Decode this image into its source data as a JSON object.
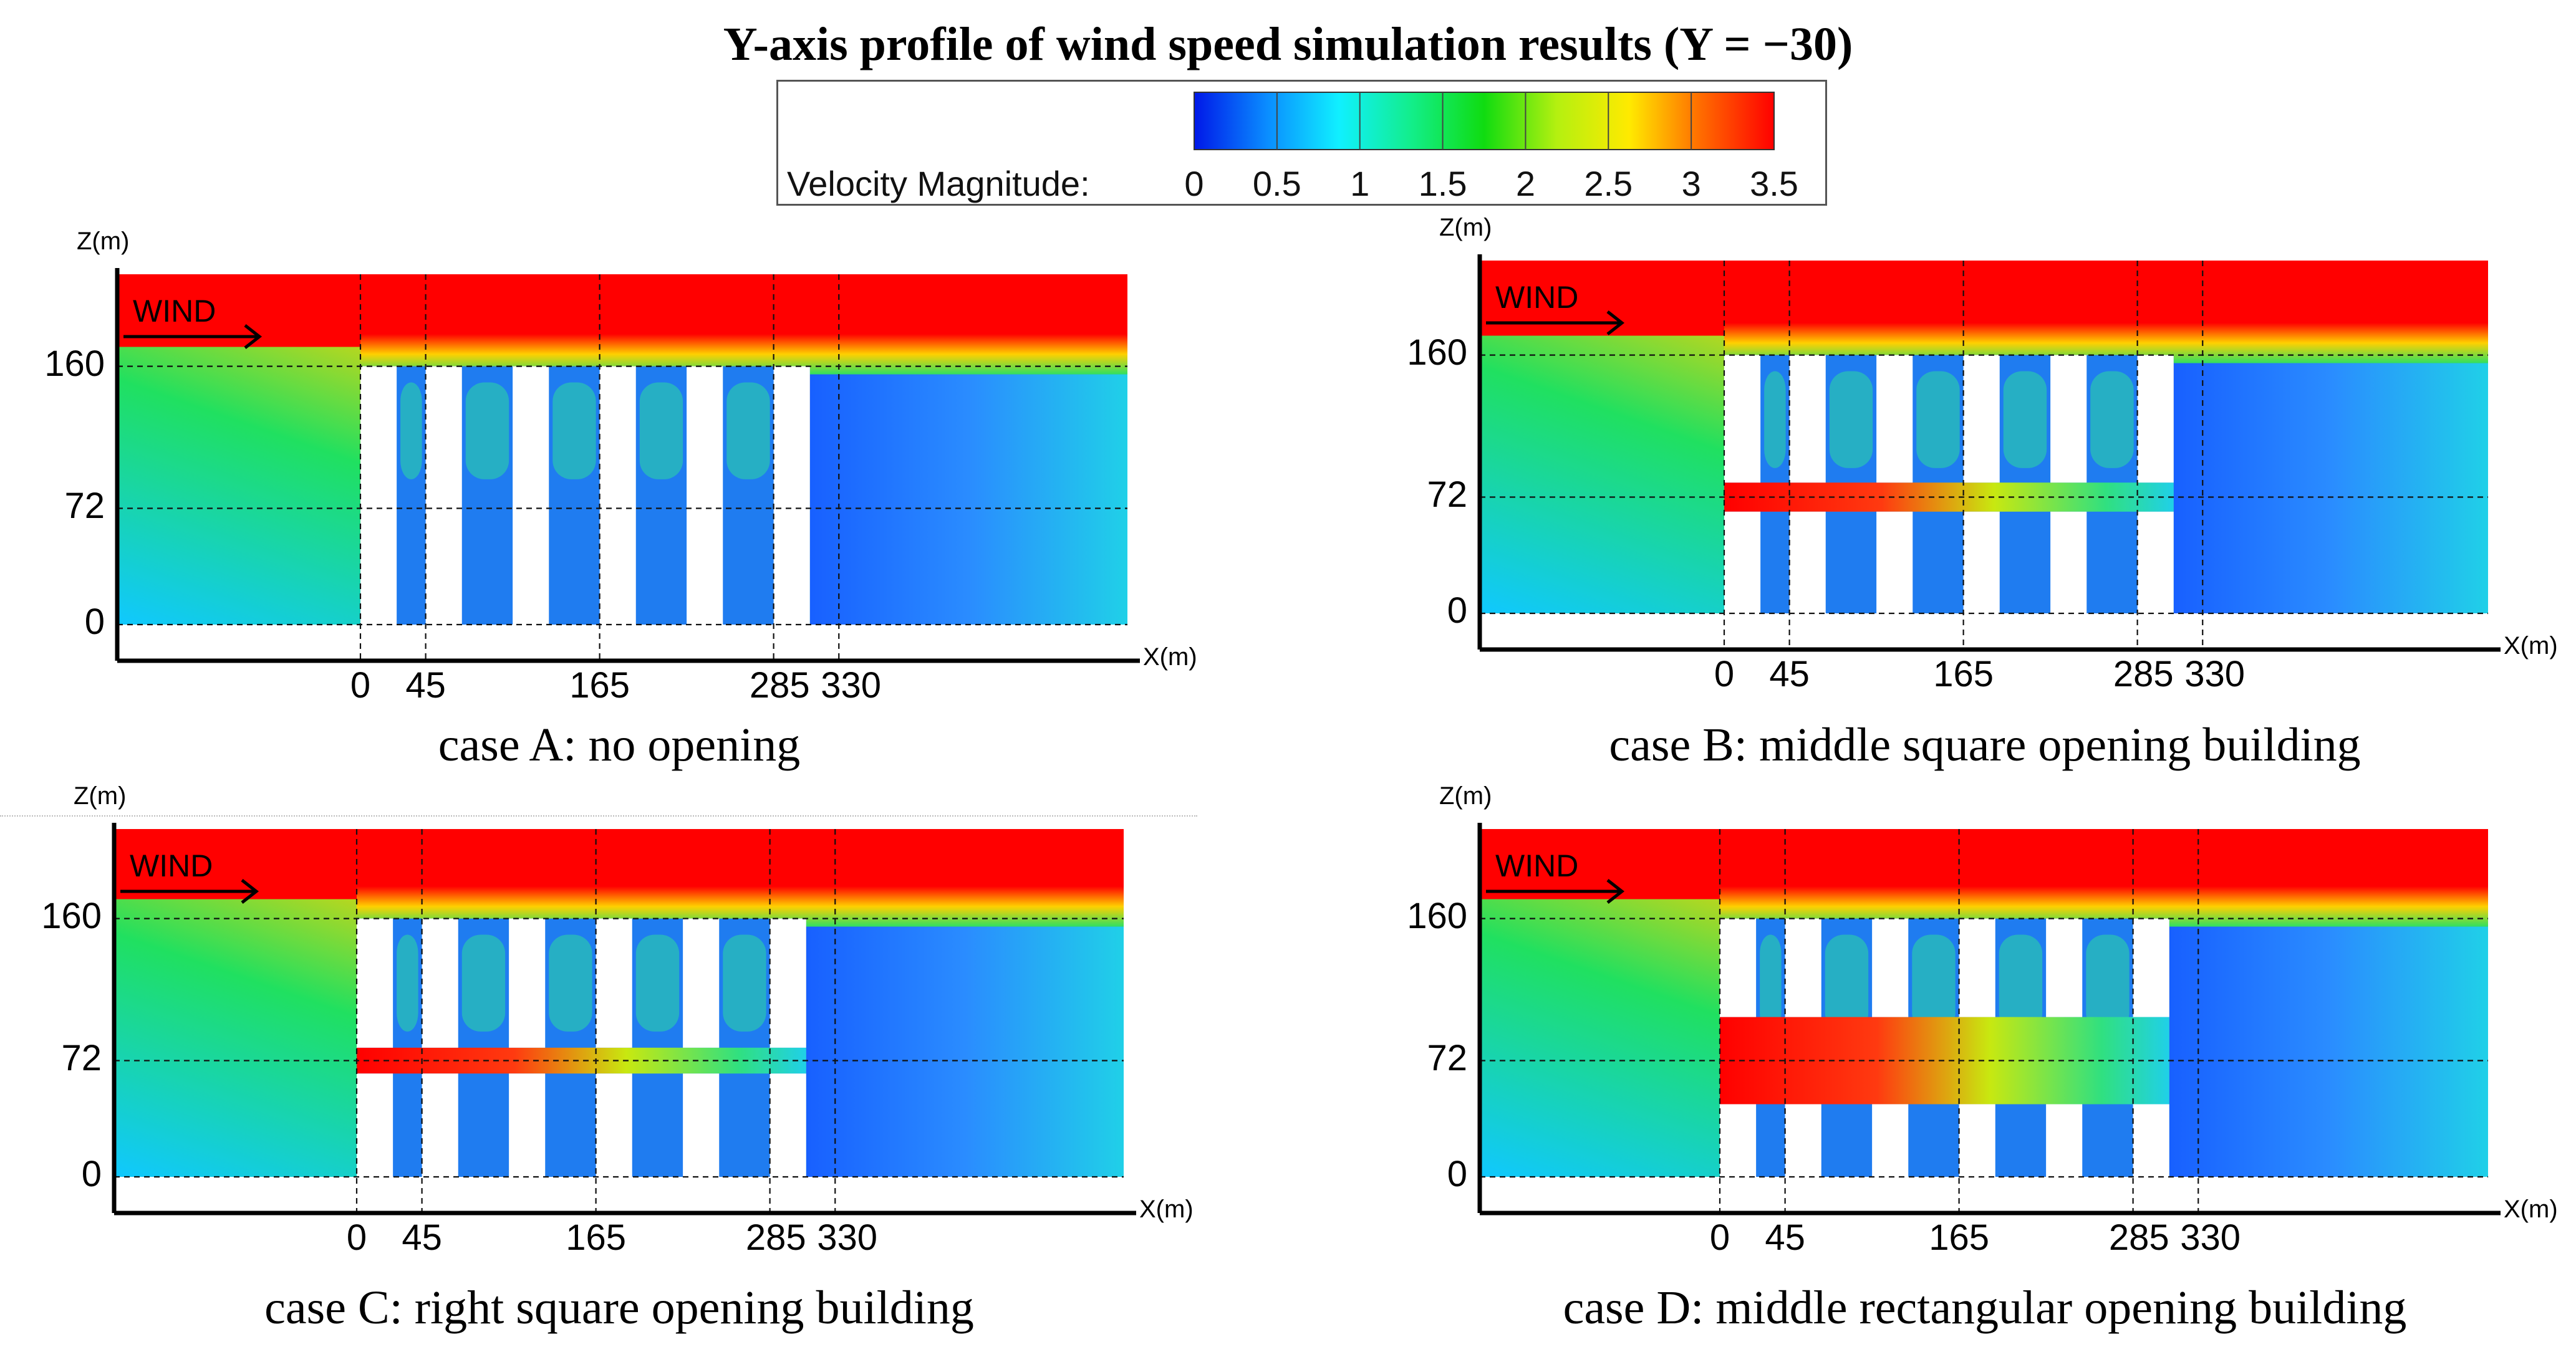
{
  "chart_data": {
    "type": "heatmap",
    "title": "Y-axis profile of wind speed simulation results (Y = −30)",
    "legend": {
      "label": "Velocity Magnitude:",
      "ticks": [
        "0",
        "0.5",
        "1",
        "1.5",
        "2",
        "2.5",
        "3",
        "3.5"
      ],
      "range": [
        0,
        3.5
      ],
      "colors": [
        "#0018e8",
        "#0a8cff",
        "#10f0ff",
        "#12ee8a",
        "#10dc10",
        "#b4f010",
        "#ffea00",
        "#ff6a00",
        "#ff0000"
      ]
    },
    "panels": [
      {
        "id": "A",
        "caption": "case A: no opening",
        "xlabel": "X(m)",
        "ylabel": "Z(m)",
        "wind_label": "WIND",
        "x_ticks": [
          {
            "v": 0,
            "label": "0"
          },
          {
            "v": 45,
            "label": "45"
          },
          {
            "v": 165,
            "label": "165"
          },
          {
            "v": 285,
            "label": "285"
          },
          {
            "v": 330,
            "label": "330"
          }
        ],
        "z_ticks": [
          {
            "v": 0,
            "label": "0"
          },
          {
            "v": 72,
            "label": "72"
          },
          {
            "v": 160,
            "label": "160"
          }
        ],
        "opening": "none"
      },
      {
        "id": "B",
        "caption": "case B: middle square opening building",
        "xlabel": "X(m)",
        "ylabel": "Z(m)",
        "wind_label": "WIND",
        "x_ticks": [
          {
            "v": 0,
            "label": "0"
          },
          {
            "v": 45,
            "label": "45"
          },
          {
            "v": 165,
            "label": "165"
          },
          {
            "v": 285,
            "label": "285"
          },
          {
            "v": 330,
            "label": "330"
          }
        ],
        "z_ticks": [
          {
            "v": 0,
            "label": "0"
          },
          {
            "v": 72,
            "label": "72"
          },
          {
            "v": 160,
            "label": "160"
          }
        ],
        "opening": "middle-square"
      },
      {
        "id": "C",
        "caption": "case C: right square opening building",
        "xlabel": "X(m)",
        "ylabel": "Z(m)",
        "wind_label": "WIND",
        "x_ticks": [
          {
            "v": 0,
            "label": "0"
          },
          {
            "v": 45,
            "label": "45"
          },
          {
            "v": 165,
            "label": "165"
          },
          {
            "v": 285,
            "label": "285"
          },
          {
            "v": 330,
            "label": "330"
          }
        ],
        "z_ticks": [
          {
            "v": 0,
            "label": "0"
          },
          {
            "v": 72,
            "label": "72"
          },
          {
            "v": 160,
            "label": "160"
          }
        ],
        "opening": "right-square"
      },
      {
        "id": "D",
        "caption": "case D: middle rectangular opening building",
        "xlabel": "X(m)",
        "ylabel": "Z(m)",
        "wind_label": "WIND",
        "x_ticks": [
          {
            "v": 0,
            "label": "0"
          },
          {
            "v": 45,
            "label": "45"
          },
          {
            "v": 165,
            "label": "165"
          },
          {
            "v": 285,
            "label": "285"
          },
          {
            "v": 330,
            "label": "330"
          }
        ],
        "z_ticks": [
          {
            "v": 0,
            "label": "0"
          },
          {
            "v": 72,
            "label": "72"
          },
          {
            "v": 160,
            "label": "160"
          }
        ],
        "opening": "middle-rectangular"
      }
    ]
  }
}
